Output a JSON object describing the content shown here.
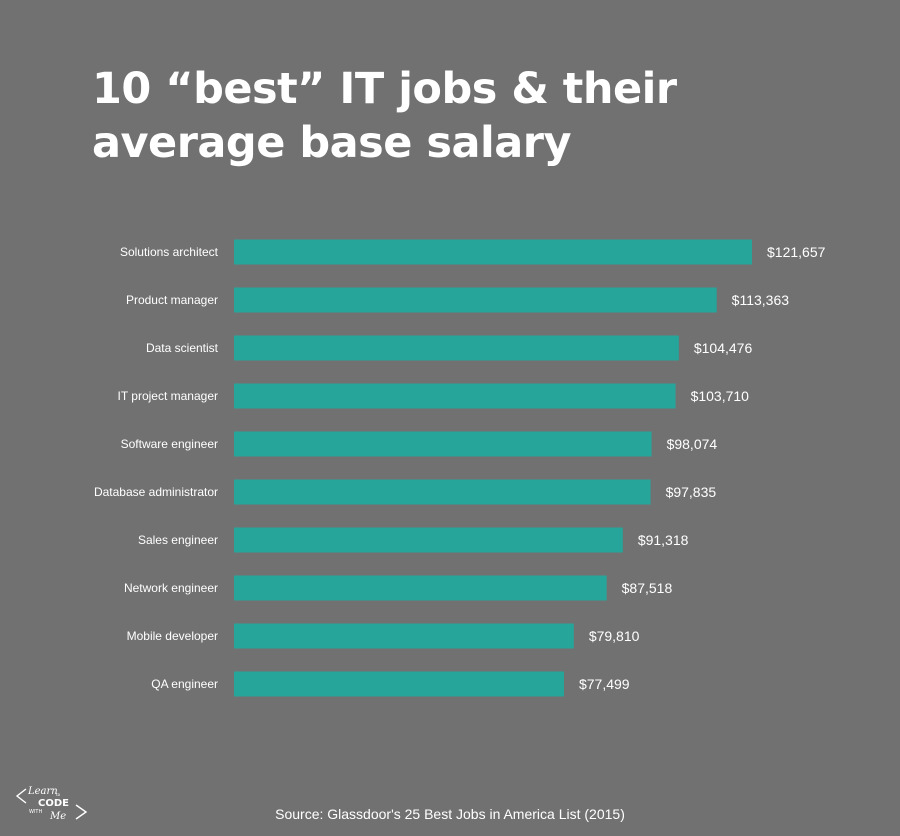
{
  "title": "10 “best” IT jobs & their average base salary",
  "source": "Source: Glassdoor's 25 Best Jobs in America List (2015)",
  "logo": {
    "line1": "Learn",
    "line2": "to",
    "line3": "CODE",
    "line4": "WITH",
    "line5": "Me"
  },
  "colors": {
    "background": "#717171",
    "bar": "#26a59a",
    "text": "#ffffff"
  },
  "chart_data": {
    "type": "bar",
    "orientation": "horizontal",
    "categories": [
      "Solutions architect",
      "Product manager",
      "Data scientist",
      "IT project manager",
      "Software engineer",
      "Database administrator",
      "Sales engineer",
      "Network engineer",
      "Mobile developer",
      "QA engineer"
    ],
    "values": [
      121657,
      113363,
      104476,
      103710,
      98074,
      97835,
      91318,
      87518,
      79810,
      77499
    ],
    "value_labels": [
      "$121,657",
      "$113,363",
      "$104,476",
      "$103,710",
      "$98,074",
      "$97,835",
      "$91,318",
      "$87,518",
      "$79,810",
      "$77,499"
    ],
    "title": "10 “best” IT jobs & their average base salary",
    "xlabel": "",
    "ylabel": "",
    "xlim": [
      0,
      121657
    ],
    "grid": false,
    "legend": "none"
  }
}
